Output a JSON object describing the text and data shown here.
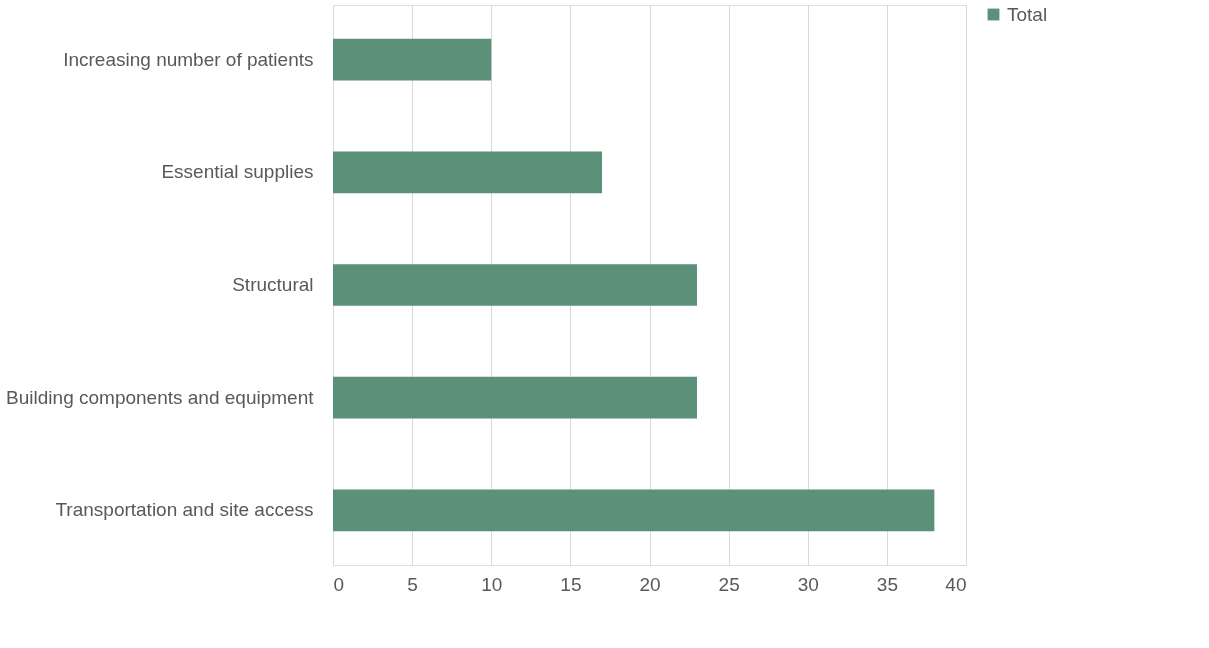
{
  "chart_data": {
    "type": "bar",
    "orientation": "horizontal",
    "categories": [
      "Increasing number of patients",
      "Essential supplies",
      "Structural",
      "Building components and equipment",
      "Transportation and site access"
    ],
    "series": [
      {
        "name": "Total",
        "color": "#5b9179",
        "values": [
          10,
          17,
          23,
          23,
          38
        ]
      }
    ],
    "xlim": [
      0,
      40
    ],
    "xticks": [
      0,
      5,
      10,
      15,
      20,
      25,
      30,
      35,
      40
    ],
    "grid": "x",
    "legend": "right"
  }
}
